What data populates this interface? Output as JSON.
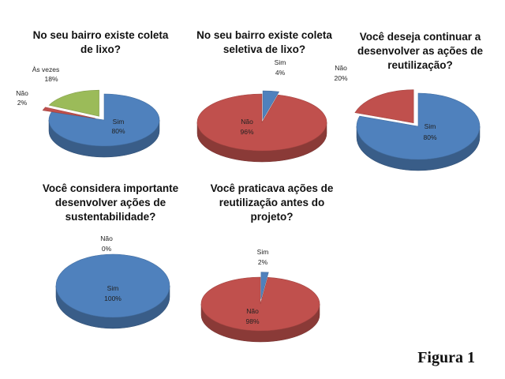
{
  "figure_label": "Figura 1",
  "colors": {
    "sim": "#4f81bd",
    "nao": "#c0504d",
    "as_vezes": "#9bbb59"
  },
  "chart_data": [
    {
      "type": "pie",
      "title": "No seu bairro existe coleta de lixo?",
      "slices": [
        {
          "label": "Sim",
          "value": 80,
          "value_text": "80%",
          "color": "#4f81bd"
        },
        {
          "label": "Não",
          "value": 2,
          "value_text": "2%",
          "color": "#c0504d"
        },
        {
          "label": "Às vezes",
          "value": 18,
          "value_text": "18%",
          "color": "#9bbb59"
        }
      ]
    },
    {
      "type": "pie",
      "title": "No seu bairro existe coleta seletiva de lixo?",
      "slices": [
        {
          "label": "Sim",
          "value": 4,
          "value_text": "4%",
          "color": "#4f81bd"
        },
        {
          "label": "Não",
          "value": 96,
          "value_text": "96%",
          "color": "#c0504d"
        }
      ]
    },
    {
      "type": "pie",
      "title": "Você deseja continuar a desenvolver as ações de reutilização?",
      "slices": [
        {
          "label": "Sim",
          "value": 80,
          "value_text": "80%",
          "color": "#4f81bd"
        },
        {
          "label": "Não",
          "value": 20,
          "value_text": "20%",
          "color": "#c0504d"
        }
      ]
    },
    {
      "type": "pie",
      "title": "Você considera importante desenvolver ações de sustentabilidade?",
      "slices": [
        {
          "label": "Sim",
          "value": 100,
          "value_text": "100%",
          "color": "#4f81bd"
        },
        {
          "label": "Não",
          "value": 0,
          "value_text": "0%",
          "color": "#c0504d"
        }
      ]
    },
    {
      "type": "pie",
      "title": "Você praticava ações de reutilização antes do projeto?",
      "slices": [
        {
          "label": "Sim",
          "value": 2,
          "value_text": "2%",
          "color": "#4f81bd"
        },
        {
          "label": "Não",
          "value": 98,
          "value_text": "98%",
          "color": "#c0504d"
        }
      ]
    }
  ]
}
